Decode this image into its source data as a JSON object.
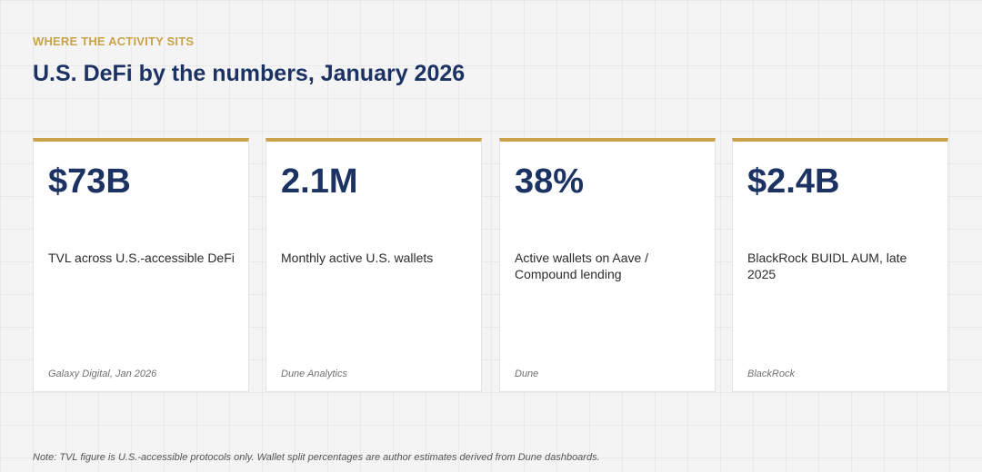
{
  "header": {
    "eyebrow": "WHERE THE ACTIVITY SITS",
    "title": "U.S. DeFi by the numbers, January 2026"
  },
  "cards": [
    {
      "value": "$73B",
      "label": "TVL across U.S.-accessible DeFi",
      "source": "Galaxy Digital, Jan 2026"
    },
    {
      "value": "2.1M",
      "label": "Monthly active U.S. wallets",
      "source": "Dune Analytics"
    },
    {
      "value": "38%",
      "label": "Active wallets on Aave / Compound lending",
      "source": "Dune"
    },
    {
      "value": "$2.4B",
      "label": "BlackRock BUIDL AUM, late 2025",
      "source": "BlackRock"
    }
  ],
  "footer": {
    "note": "Note: TVL figure is U.S.-accessible protocols only. Wallet split percentages are author estimates derived from Dune dashboards."
  },
  "colors": {
    "accent": "#c9a24a",
    "navy": "#1b3263",
    "background": "#f4f4f4"
  }
}
